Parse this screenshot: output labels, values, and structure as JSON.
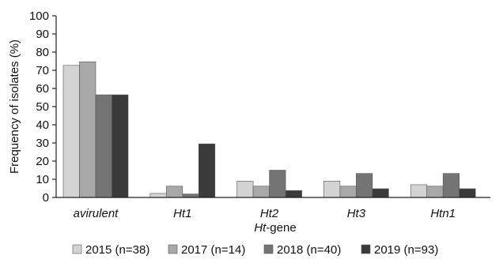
{
  "chart_data": {
    "type": "bar",
    "title": "",
    "ylabel": "Frequency of isolates (%)",
    "xlabel_italic": "Ht",
    "xlabel_rest": "-gene",
    "ylim": [
      0,
      100
    ],
    "yticks": [
      0,
      10,
      20,
      30,
      40,
      50,
      60,
      70,
      80,
      90,
      100
    ],
    "categories": [
      "avirulent",
      "Ht1",
      "Ht2",
      "Ht3",
      "Htn1"
    ],
    "series": [
      {
        "name": "2015 (n=38)",
        "color": "#d3d3d3",
        "values": [
          72.7,
          2.2,
          9.0,
          9.0,
          7.0
        ]
      },
      {
        "name": "2017 (n=14)",
        "color": "#a8a8a8",
        "values": [
          74.7,
          6.2,
          6.2,
          6.2,
          6.2
        ]
      },
      {
        "name": "2018 (n=40)",
        "color": "#747474",
        "values": [
          56.5,
          1.9,
          15.0,
          13.2,
          13.2
        ]
      },
      {
        "name": "2019 (n=93)",
        "color": "#3a3a3a",
        "values": [
          56.5,
          29.5,
          3.8,
          4.8,
          4.8
        ]
      }
    ],
    "legend_position": "bottom",
    "grid": false
  }
}
